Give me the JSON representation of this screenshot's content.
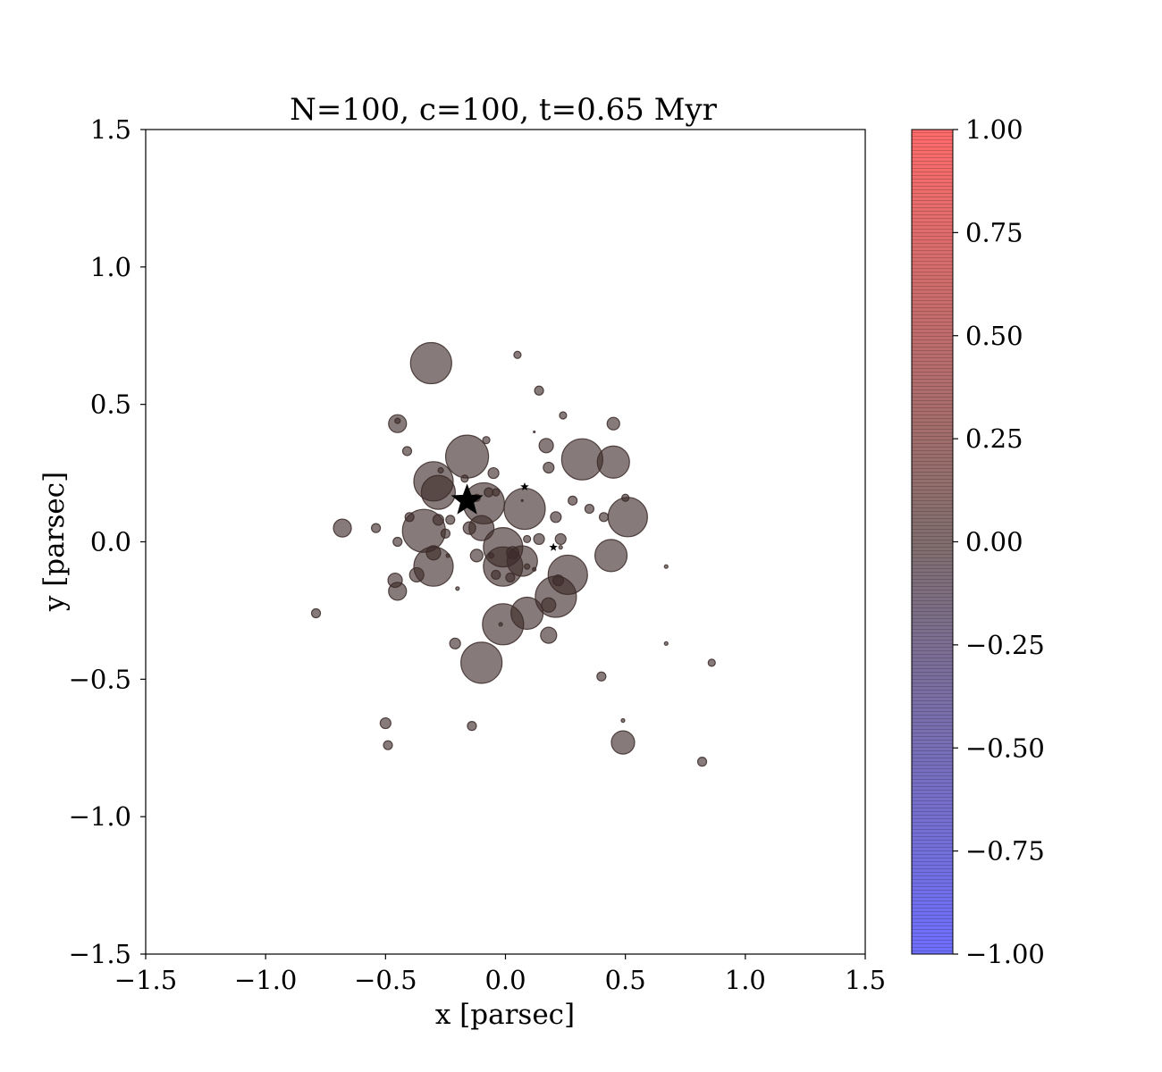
{
  "chart_data": {
    "type": "scatter",
    "title": "N=100, c=100, t=0.65 Myr",
    "xlabel": "x [parsec]",
    "ylabel": "y [parsec]",
    "xlim": [
      -1.5,
      1.5
    ],
    "ylim": [
      -1.5,
      1.5
    ],
    "xticks": [
      "−1.5",
      "−1.0",
      "−0.5",
      "0.0",
      "0.5",
      "1.0",
      "1.5"
    ],
    "yticks": [
      "−1.5",
      "−1.0",
      "−0.5",
      "0.0",
      "0.5",
      "1.0",
      "1.5"
    ],
    "grid": false,
    "colorbar": {
      "range": [
        -1.0,
        1.0
      ],
      "ticks": [
        "1.00",
        "0.75",
        "0.50",
        "0.25",
        "0.00",
        "−0.25",
        "−0.50",
        "−0.75",
        "−1.00"
      ],
      "color_low": "#6f6fff",
      "color_mid": "#806e6d",
      "color_high": "#ff6b6b"
    },
    "point_color": "#3b2a28",
    "point_alpha": 0.62,
    "points": [
      {
        "x": -0.31,
        "y": 0.65,
        "r": 23
      },
      {
        "x": -0.16,
        "y": 0.31,
        "r": 24
      },
      {
        "x": -0.3,
        "y": 0.22,
        "r": 22
      },
      {
        "x": -0.28,
        "y": 0.18,
        "r": 19
      },
      {
        "x": -0.09,
        "y": 0.14,
        "r": 23
      },
      {
        "x": 0.08,
        "y": 0.12,
        "r": 23
      },
      {
        "x": 0.32,
        "y": 0.3,
        "r": 23
      },
      {
        "x": 0.45,
        "y": 0.29,
        "r": 18
      },
      {
        "x": 0.51,
        "y": 0.09,
        "r": 22
      },
      {
        "x": -0.34,
        "y": 0.04,
        "r": 24
      },
      {
        "x": -0.1,
        "y": 0.05,
        "r": 14
      },
      {
        "x": -0.01,
        "y": -0.02,
        "r": 22
      },
      {
        "x": -0.01,
        "y": -0.09,
        "r": 22
      },
      {
        "x": 0.07,
        "y": -0.07,
        "r": 17
      },
      {
        "x": 0.26,
        "y": -0.12,
        "r": 22
      },
      {
        "x": 0.44,
        "y": -0.05,
        "r": 18
      },
      {
        "x": 0.21,
        "y": -0.2,
        "r": 23
      },
      {
        "x": -0.3,
        "y": -0.09,
        "r": 22
      },
      {
        "x": -0.01,
        "y": -0.3,
        "r": 23
      },
      {
        "x": 0.09,
        "y": -0.26,
        "r": 18
      },
      {
        "x": -0.1,
        "y": -0.44,
        "r": 23
      },
      {
        "x": 0.49,
        "y": -0.73,
        "r": 13
      },
      {
        "x": -0.45,
        "y": 0.43,
        "r": 10
      },
      {
        "x": -0.68,
        "y": 0.05,
        "r": 10
      },
      {
        "x": -0.45,
        "y": -0.18,
        "r": 10
      },
      {
        "x": -0.46,
        "y": -0.14,
        "r": 8
      },
      {
        "x": -0.37,
        "y": -0.12,
        "r": 8
      },
      {
        "x": 0.17,
        "y": 0.35,
        "r": 8
      },
      {
        "x": 0.18,
        "y": 0.27,
        "r": 6
      },
      {
        "x": 0.45,
        "y": 0.43,
        "r": 7
      },
      {
        "x": 0.18,
        "y": -0.23,
        "r": 8
      },
      {
        "x": 0.18,
        "y": -0.34,
        "r": 9
      },
      {
        "x": -0.21,
        "y": -0.37,
        "r": 6
      },
      {
        "x": 0.22,
        "y": -0.14,
        "r": 6
      },
      {
        "x": 0.03,
        "y": -0.04,
        "r": 7
      },
      {
        "x": -0.41,
        "y": 0.33,
        "r": 5
      },
      {
        "x": -0.12,
        "y": -0.05,
        "r": 7
      },
      {
        "x": -0.05,
        "y": 0.25,
        "r": 6
      },
      {
        "x": -0.15,
        "y": 0.05,
        "r": 7
      },
      {
        "x": -0.3,
        "y": -0.04,
        "r": 8
      },
      {
        "x": -0.28,
        "y": 0.08,
        "r": 6
      },
      {
        "x": 0.05,
        "y": 0.68,
        "r": 4
      },
      {
        "x": 0.14,
        "y": 0.55,
        "r": 5
      },
      {
        "x": 0.24,
        "y": 0.46,
        "r": 4
      },
      {
        "x": -0.08,
        "y": 0.37,
        "r": 4
      },
      {
        "x": 0.28,
        "y": 0.15,
        "r": 5
      },
      {
        "x": 0.35,
        "y": 0.12,
        "r": 5
      },
      {
        "x": 0.21,
        "y": 0.09,
        "r": 6
      },
      {
        "x": 0.41,
        "y": 0.09,
        "r": 5
      },
      {
        "x": 0.5,
        "y": 0.16,
        "r": 4
      },
      {
        "x": 0.23,
        "y": 0.01,
        "r": 6
      },
      {
        "x": 0.14,
        "y": 0.01,
        "r": 6
      },
      {
        "x": -0.4,
        "y": 0.09,
        "r": 5
      },
      {
        "x": -0.23,
        "y": 0.08,
        "r": 5
      },
      {
        "x": -0.25,
        "y": 0.03,
        "r": 5
      },
      {
        "x": -0.54,
        "y": 0.05,
        "r": 5
      },
      {
        "x": -0.45,
        "y": 0.0,
        "r": 5
      },
      {
        "x": -0.79,
        "y": -0.26,
        "r": 5
      },
      {
        "x": 0.4,
        "y": -0.49,
        "r": 5
      },
      {
        "x": -0.5,
        "y": -0.66,
        "r": 6
      },
      {
        "x": -0.49,
        "y": -0.74,
        "r": 5
      },
      {
        "x": -0.14,
        "y": -0.67,
        "r": 5
      },
      {
        "x": 0.82,
        "y": -0.8,
        "r": 5
      },
      {
        "x": 0.86,
        "y": -0.44,
        "r": 4
      },
      {
        "x": 0.67,
        "y": -0.09,
        "r": 2
      },
      {
        "x": 0.67,
        "y": -0.37,
        "r": 2
      },
      {
        "x": 0.49,
        "y": -0.65,
        "r": 2
      },
      {
        "x": -0.2,
        "y": -0.17,
        "r": 2
      },
      {
        "x": -0.02,
        "y": -0.3,
        "r": 2
      },
      {
        "x": -0.07,
        "y": 0.18,
        "r": 5
      },
      {
        "x": -0.04,
        "y": 0.18,
        "r": 4
      },
      {
        "x": 0.02,
        "y": -0.13,
        "r": 5
      },
      {
        "x": -0.04,
        "y": -0.12,
        "r": 5
      },
      {
        "x": 0.09,
        "y": 0.01,
        "r": 4
      },
      {
        "x": 0.09,
        "y": -0.09,
        "r": 3
      },
      {
        "x": 0.12,
        "y": 0.4,
        "r": 1
      },
      {
        "x": 0.07,
        "y": 0.15,
        "r": 1
      },
      {
        "x": -0.45,
        "y": 0.44,
        "r": 3
      },
      {
        "x": -0.27,
        "y": 0.26,
        "r": 3
      },
      {
        "x": -0.24,
        "y": -0.05,
        "r": 2
      },
      {
        "x": 0.23,
        "y": -0.02,
        "r": 2
      },
      {
        "x": -0.17,
        "y": 0.23,
        "r": 4
      },
      {
        "x": -0.12,
        "y": 0.16,
        "r": 4
      },
      {
        "x": -0.06,
        "y": -0.05,
        "r": 3
      },
      {
        "x": 0.12,
        "y": -0.1,
        "r": 2
      }
    ],
    "star_markers": [
      {
        "x": -0.16,
        "y": 0.15,
        "size": "large"
      },
      {
        "x": 0.08,
        "y": 0.2,
        "size": "small"
      },
      {
        "x": 0.2,
        "y": -0.02,
        "size": "small"
      }
    ]
  }
}
